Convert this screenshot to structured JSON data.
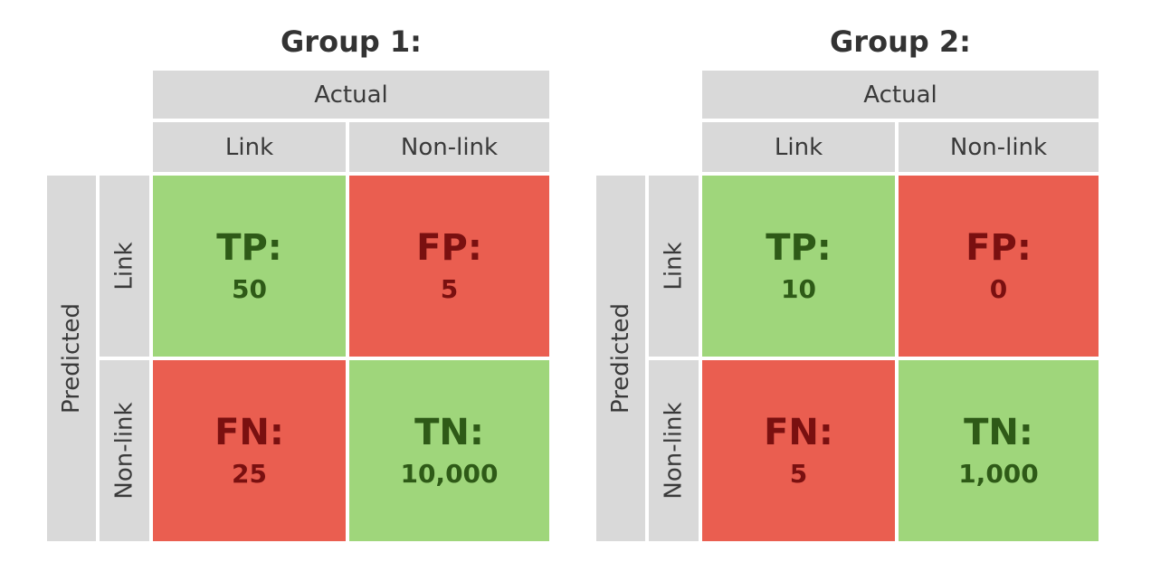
{
  "colors": {
    "header_gray": "#d9d9d9",
    "correct_green": "#9fd67b",
    "error_red": "#ea5e50"
  },
  "groups": [
    {
      "title": "Group 1:",
      "actual_label": "Actual",
      "predicted_label": "Predicted",
      "col_labels": [
        "Link",
        "Non-link"
      ],
      "row_labels": [
        "Link",
        "Non-link"
      ],
      "cells": {
        "tp": {
          "label": "TP:",
          "value": "50"
        },
        "fp": {
          "label": "FP:",
          "value": "5"
        },
        "fn": {
          "label": "FN:",
          "value": "25"
        },
        "tn": {
          "label": "TN:",
          "value": "10,000"
        }
      }
    },
    {
      "title": "Group 2:",
      "actual_label": "Actual",
      "predicted_label": "Predicted",
      "col_labels": [
        "Link",
        "Non-link"
      ],
      "row_labels": [
        "Link",
        "Non-link"
      ],
      "cells": {
        "tp": {
          "label": "TP:",
          "value": "10"
        },
        "fp": {
          "label": "FP:",
          "value": "0"
        },
        "fn": {
          "label": "FN:",
          "value": "5"
        },
        "tn": {
          "label": "TN:",
          "value": "1,000"
        }
      }
    }
  ]
}
